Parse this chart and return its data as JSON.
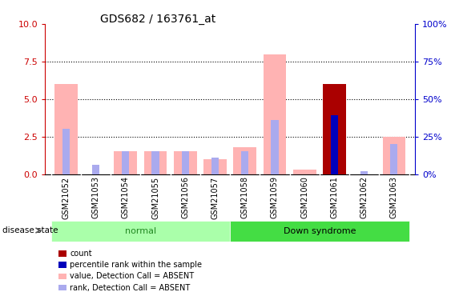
{
  "title": "GDS682 / 163761_at",
  "samples": [
    "GSM21052",
    "GSM21053",
    "GSM21054",
    "GSM21055",
    "GSM21056",
    "GSM21057",
    "GSM21058",
    "GSM21059",
    "GSM21060",
    "GSM21061",
    "GSM21062",
    "GSM21063"
  ],
  "groups": [
    "normal",
    "normal",
    "normal",
    "normal",
    "normal",
    "normal",
    "Down syndrome",
    "Down syndrome",
    "Down syndrome",
    "Down syndrome",
    "Down syndrome",
    "Down syndrome"
  ],
  "value_absent": [
    6.0,
    0.0,
    1.5,
    1.5,
    1.5,
    1.0,
    1.8,
    8.0,
    0.3,
    0.0,
    0.0,
    2.5
  ],
  "rank_absent": [
    3.0,
    0.6,
    1.5,
    1.5,
    1.5,
    1.1,
    1.5,
    3.6,
    0.0,
    0.0,
    0.2,
    2.0
  ],
  "count": [
    0.0,
    0.0,
    0.0,
    0.0,
    0.0,
    0.0,
    0.0,
    0.0,
    0.0,
    6.0,
    0.0,
    0.0
  ],
  "percentile_rank": [
    0.0,
    0.0,
    0.0,
    0.0,
    0.0,
    0.0,
    0.0,
    0.0,
    0.0,
    3.9,
    0.0,
    0.0
  ],
  "ylim_left": [
    0,
    10
  ],
  "ylim_right": [
    0,
    100
  ],
  "yticks_left": [
    0,
    2.5,
    5.0,
    7.5,
    10
  ],
  "yticks_right": [
    0,
    25,
    50,
    75,
    100
  ],
  "color_value_absent": "#FFB3B3",
  "color_rank_absent": "#AAAAEE",
  "color_count": "#AA0000",
  "color_percentile": "#0000BB",
  "normal_color": "#AAFFAA",
  "downsyndrome_color": "#44DD44",
  "normal_text_color": "#228822",
  "bg_color": "#CCCCCC",
  "left_axis_color": "#CC0000",
  "right_axis_color": "#0000CC",
  "bar_width": 0.35,
  "legend_items": [
    {
      "label": "count",
      "color": "#AA0000"
    },
    {
      "label": "percentile rank within the sample",
      "color": "#0000BB"
    },
    {
      "label": "value, Detection Call = ABSENT",
      "color": "#FFB3B3"
    },
    {
      "label": "rank, Detection Call = ABSENT",
      "color": "#AAAAEE"
    }
  ]
}
